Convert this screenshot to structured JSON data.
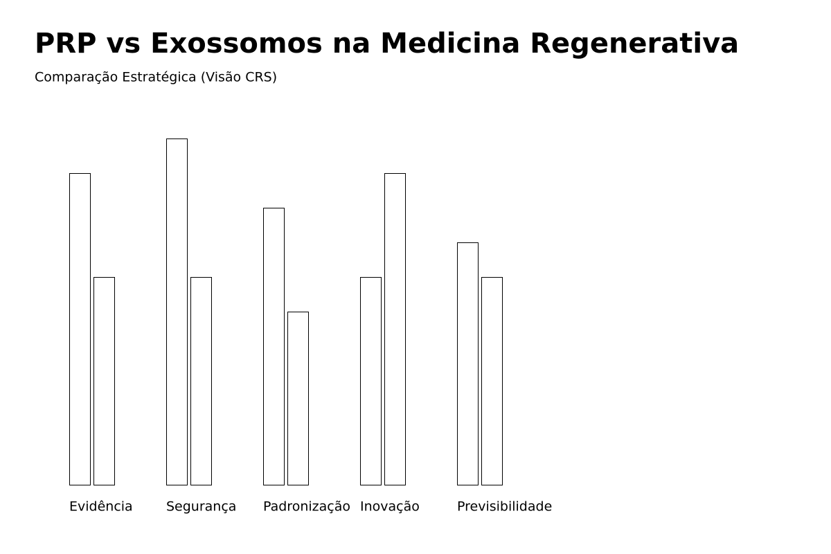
{
  "chart_data": {
    "type": "bar",
    "title": "PRP vs Exossomos na Medicina Regenerativa",
    "subtitle": "Comparação Estratégica (Visão CRS)",
    "categories": [
      "Evidência",
      "Segurança",
      "Padronização",
      "Inovação",
      "Previsibilidade"
    ],
    "series": [
      {
        "color": "#ffffff",
        "values": [
          9,
          10,
          8,
          6,
          7
        ]
      },
      {
        "color": "#ffffff",
        "values": [
          6,
          6,
          5,
          9,
          6
        ]
      }
    ],
    "ylim": [
      0,
      10
    ]
  }
}
